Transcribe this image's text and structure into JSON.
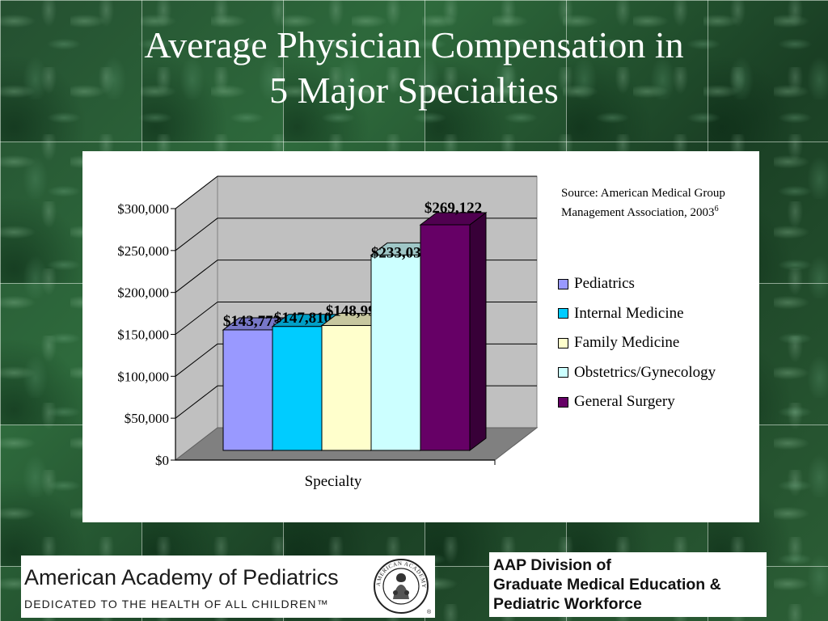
{
  "slide": {
    "title_line1": "Average Physician Compensation in",
    "title_line2": "5 Major Specialties"
  },
  "source": {
    "text": "Source: American Medical Group Management Association, 2003",
    "footnote": "6"
  },
  "chart_data": {
    "type": "bar",
    "style": "3d-clustered-column",
    "categories": [
      "Specialty"
    ],
    "xlabel": "Specialty",
    "ylabel": "",
    "ylim": [
      0,
      300000
    ],
    "yticks": [
      0,
      50000,
      100000,
      150000,
      200000,
      250000,
      300000
    ],
    "ytick_labels": [
      "$0",
      "$50,000",
      "$100,000",
      "$150,000",
      "$200,000",
      "$250,000",
      "$300,000"
    ],
    "grid": true,
    "legend_position": "right",
    "series": [
      {
        "name": "Pediatrics",
        "values": [
          143773
        ],
        "label": "$143,773",
        "color": "#9999ff"
      },
      {
        "name": "Internal Medicine",
        "values": [
          147810
        ],
        "label": "$147,810",
        "color": "#00ccff"
      },
      {
        "name": "Family Medicine",
        "values": [
          148992
        ],
        "label": "$148,992",
        "color": "#ffffcc"
      },
      {
        "name": "Obstetrics/Gynecology",
        "values": [
          233030
        ],
        "label": "$233,030",
        "color": "#ccffff"
      },
      {
        "name": "General Surgery",
        "values": [
          269122
        ],
        "label": "$269,122",
        "color": "#660066"
      }
    ]
  },
  "logos": {
    "aap_name": "American Academy of Pediatrics",
    "aap_tagline": "DEDICATED TO THE HEALTH OF ALL CHILDREN™",
    "aap_seal_text": "AMERICAN ACADEMY OF PEDIATRICS",
    "division_line1": "AAP Division of",
    "division_line2": "Graduate Medical Education &",
    "division_line3": "Pediatric Workforce"
  }
}
